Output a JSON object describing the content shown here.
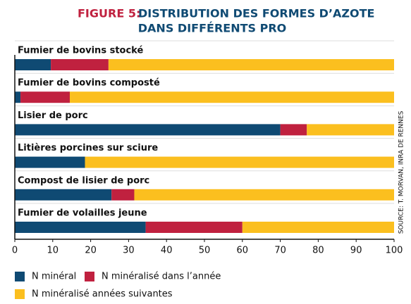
{
  "chart_data": {
    "type": "stacked-bar-horizontal",
    "figure_label": "FIGURE 5:",
    "title": [
      "DISTRIBUTION DES FORMES D’AZOTE",
      "DANS DIFFÉRENTS PRO"
    ],
    "source": "SOURCE: T. MORVAN, INRA DE RENNES",
    "categories": [
      "Fumier de bovins stocké",
      "Fumier de bovins composté",
      "Lisier de porc",
      "Litières porcines sur sciure",
      "Compost de lisier de porc",
      "Fumier de volailles jeune"
    ],
    "series": [
      {
        "name": "N minéral",
        "color": "#0f4a73",
        "values": [
          9.5,
          1.5,
          70,
          18.5,
          25.5,
          34.5
        ]
      },
      {
        "name": "N minéralisé dans l’année",
        "color": "#c0213f",
        "values": [
          15.2,
          13,
          7,
          0,
          6,
          25.5
        ]
      },
      {
        "name": "N minéralisé années suivantes",
        "color": "#fbbf1f",
        "values": [
          75.3,
          85.5,
          23,
          81.5,
          68.5,
          40
        ]
      }
    ],
    "xlim": [
      0,
      100
    ],
    "xticks": [
      0,
      10,
      20,
      30,
      40,
      50,
      60,
      70,
      80,
      90,
      100
    ]
  }
}
